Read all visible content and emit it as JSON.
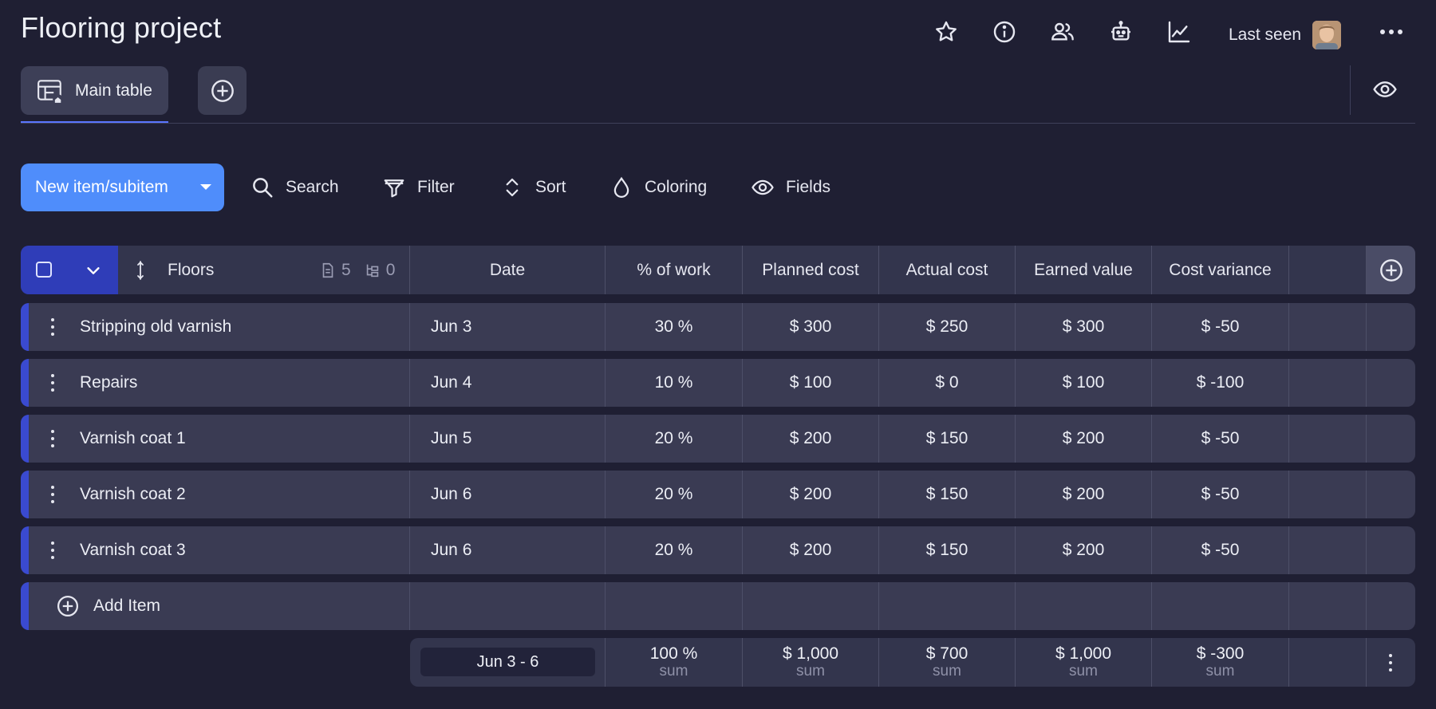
{
  "header": {
    "title": "Flooring project",
    "last_seen_label": "Last seen",
    "icons": [
      "star-icon",
      "info-icon",
      "users-icon",
      "robot-icon",
      "chart-line-icon",
      "more-horizontal-icon"
    ]
  },
  "tabs": {
    "main_label": "Main table"
  },
  "toolbar": {
    "new_item_label": "New item/subitem",
    "search_label": "Search",
    "filter_label": "Filter",
    "sort_label": "Sort",
    "coloring_label": "Coloring",
    "fields_label": "Fields"
  },
  "table": {
    "group_label": "Floors",
    "item_count": "5",
    "subitem_count": "0",
    "columns": [
      "Date",
      "% of work",
      "Planned cost",
      "Actual cost",
      "Earned value",
      "Cost variance"
    ],
    "rows": [
      {
        "name": "Stripping old varnish",
        "date": "Jun 3",
        "work": "30 %",
        "planned": "$ 300",
        "actual": "$ 250",
        "earned": "$ 300",
        "variance": "$ -50"
      },
      {
        "name": "Repairs",
        "date": "Jun 4",
        "work": "10 %",
        "planned": "$ 100",
        "actual": "$ 0",
        "earned": "$ 100",
        "variance": "$ -100"
      },
      {
        "name": "Varnish coat 1",
        "date": "Jun 5",
        "work": "20 %",
        "planned": "$ 200",
        "actual": "$ 150",
        "earned": "$ 200",
        "variance": "$ -50"
      },
      {
        "name": "Varnish coat 2",
        "date": "Jun 6",
        "work": "20 %",
        "planned": "$ 200",
        "actual": "$ 150",
        "earned": "$ 200",
        "variance": "$ -50"
      },
      {
        "name": "Varnish coat 3",
        "date": "Jun 6",
        "work": "20 %",
        "planned": "$ 200",
        "actual": "$ 150",
        "earned": "$ 200",
        "variance": "$ -50"
      }
    ],
    "add_item_label": "Add Item",
    "footer": {
      "date_range": "Jun 3 - 6",
      "work": "100 %",
      "planned": "$ 1,000",
      "actual": "$ 700",
      "earned": "$ 1,000",
      "variance": "$ -300",
      "sum_label": "sum"
    }
  },
  "colors": {
    "background": "#1f1f33",
    "row": "#3a3b53",
    "accent": "#4f8dfb",
    "group_bar": "#3a4ad0"
  }
}
